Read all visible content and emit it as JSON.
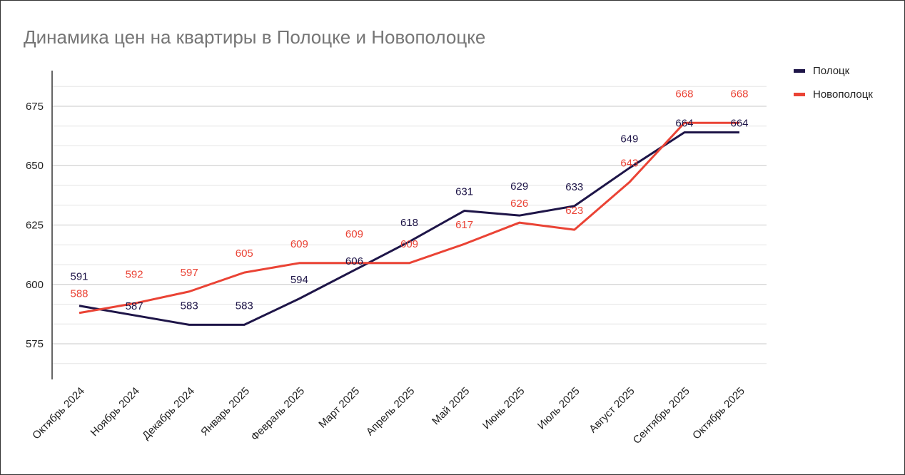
{
  "chart_data": {
    "type": "line",
    "title": "Динамика цен на квартиры в Полоцке и Новополоцке",
    "xlabel": "",
    "ylabel": "",
    "categories": [
      "Октябрь 2024",
      "Ноябрь 2024",
      "Декабрь 2024",
      "Январь 2025",
      "Февраль 2025",
      "Март 2025",
      "Апрель 2025",
      "Май 2025",
      "Июнь 2025",
      "Июль 2025",
      "Август 2025",
      "Сентябрь 2025",
      "Октябрь 2025"
    ],
    "series": [
      {
        "name": "Полоцк",
        "color": "#1e1548",
        "values": [
          591,
          587,
          583,
          583,
          594,
          606,
          618,
          631,
          629,
          633,
          649,
          664,
          664
        ]
      },
      {
        "name": "Новополоцк",
        "color": "#ea4335",
        "values": [
          588,
          592,
          597,
          605,
          609,
          609,
          609,
          617,
          626,
          623,
          643,
          668,
          668
        ]
      }
    ],
    "yticks": [
      575,
      600,
      625,
      650,
      675
    ],
    "ylim": [
      560,
      690
    ],
    "grid": true,
    "data_labels": true,
    "legend": "right"
  }
}
